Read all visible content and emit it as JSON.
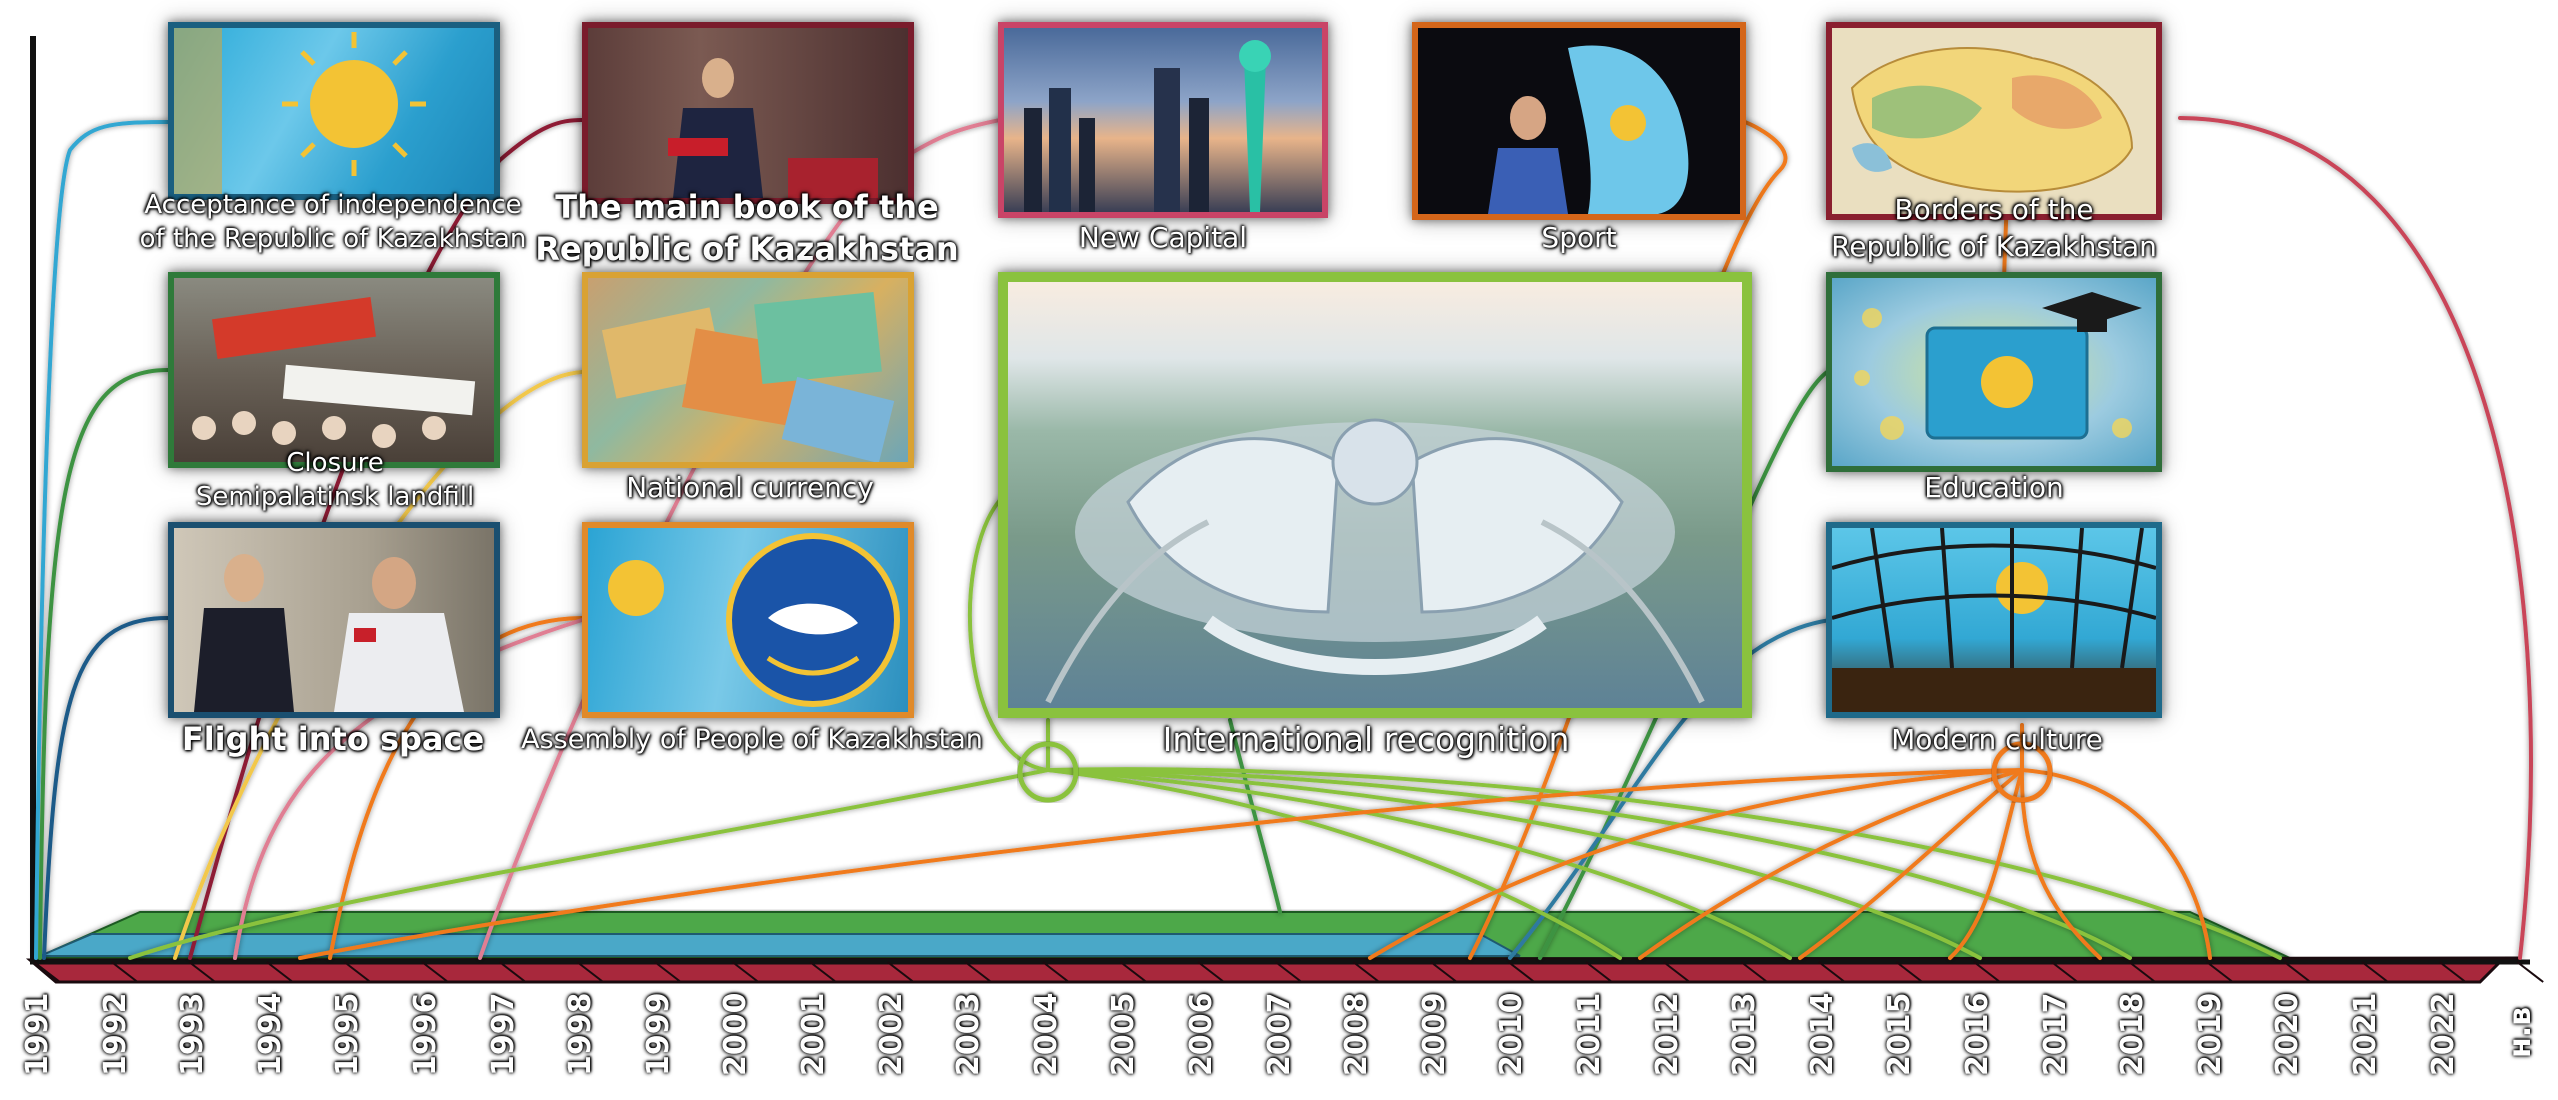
{
  "colors": {
    "light_blue": "#33a7d2",
    "dark_red": "#8e1b34",
    "pink_red": "#c94459",
    "pink": "#e07e93",
    "orange": "#f07a1b",
    "yellow": "#f2c84b",
    "green": "#3e9342",
    "dark_blue": "#1b5a88",
    "lime_green": "#8ac23e",
    "teal": "#2f7aa0",
    "timeline_red": "#a8283c",
    "band_green": "#4da84a",
    "band_blue": "#4aa8c8"
  },
  "cards": [
    {
      "id": "independence",
      "lines": [
        "Acceptance of independence",
        "of the Republic of Kazakhstan"
      ],
      "border": "#1a5f80",
      "icon": "kazakhstan-flag-image"
    },
    {
      "id": "constitution",
      "lines": [
        "The main book of the",
        "Republic of Kazakhstan"
      ],
      "border": "#7a1c2c",
      "icon": "president-reading-constitution-image"
    },
    {
      "id": "capital",
      "lines": [
        "New Capital"
      ],
      "border": "#c94467",
      "icon": "astana-skyline-image"
    },
    {
      "id": "sport",
      "lines": [
        "Sport"
      ],
      "border": "#d4661a",
      "icon": "athlete-with-flag-image"
    },
    {
      "id": "borders",
      "lines": [
        "Borders of the",
        "Republic of Kazakhstan"
      ],
      "border": "#8a1f2f",
      "icon": "kazakhstan-map-image"
    },
    {
      "id": "semipalatinsk",
      "lines": [
        "Closure",
        "Semipalatinsk landfill"
      ],
      "border": "#2f7a3a",
      "icon": "protest-crowd-image"
    },
    {
      "id": "currency",
      "lines": [
        "National currency"
      ],
      "border": "#d9a233",
      "icon": "tenge-banknotes-image"
    },
    {
      "id": "recognition",
      "lines": [
        "International recognition"
      ],
      "border": "#8ac23e",
      "icon": "expo-2017-aerial-image"
    },
    {
      "id": "education",
      "lines": [
        "Education"
      ],
      "border": "#2f6e3a",
      "icon": "education-book-image"
    },
    {
      "id": "space",
      "lines": [
        "Flight into space"
      ],
      "border": "#1a4f70",
      "icon": "cosmonaut-image"
    },
    {
      "id": "assembly",
      "lines": [
        "Assembly of People of Kazakhstan"
      ],
      "border": "#e08a2a",
      "icon": "assembly-emblem-image"
    },
    {
      "id": "culture",
      "lines": [
        "Modern culture"
      ],
      "border": "#1f6a8a",
      "icon": "stadium-roof-image"
    }
  ],
  "timeline": {
    "years": [
      "1991",
      "1992",
      "1993",
      "1994",
      "1995",
      "1996",
      "1997",
      "1998",
      "1999",
      "2000",
      "2001",
      "2002",
      "2003",
      "2004",
      "2005",
      "2006",
      "2007",
      "2008",
      "2009",
      "2010",
      "2011",
      "2012",
      "2013",
      "2014",
      "2015",
      "2016",
      "2017",
      "2018",
      "2019",
      "2020",
      "2021",
      "2022",
      "н.в"
    ],
    "bands": [
      {
        "name": "green-band",
        "color": "#4da84a",
        "start": "1991",
        "end": "2019"
      },
      {
        "name": "blue-band",
        "color": "#4aa8c8",
        "start": "1991",
        "end": "2010"
      }
    ]
  }
}
